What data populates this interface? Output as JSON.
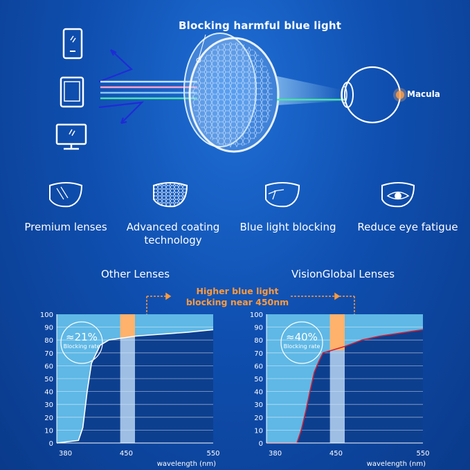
{
  "top": {
    "title": "Blocking harmful blue light",
    "macula_label": "Macula",
    "icons": [
      "phone-icon",
      "tablet-icon",
      "monitor-icon"
    ]
  },
  "features": [
    {
      "label": "Premium lenses",
      "icon": "lens-icon"
    },
    {
      "label": "Advanced coating technology",
      "line1": "Advanced coating",
      "line2": "technology",
      "icon": "coating-icon"
    },
    {
      "label": "Blue light blocking",
      "icon": "blue-light-block-icon"
    },
    {
      "label": "Reduce eye fatigue",
      "icon": "eye-icon"
    }
  ],
  "comparison": {
    "left_heading": "Other Lenses",
    "right_heading": "VisionGlobal Lenses",
    "callout_line1": "Higher blue light",
    "callout_line2": "blocking near 450nm",
    "highlight_color": "#ffb26b",
    "curve_color_left": "#ffffff",
    "curve_color_right": "#d0203a"
  },
  "chart_data": [
    {
      "type": "area",
      "title": "Other Lenses",
      "xlabel": "wavelength (nm)",
      "x_ticks": [
        380,
        450,
        550
      ],
      "y_ticks": [
        0,
        10,
        20,
        30,
        40,
        50,
        60,
        70,
        80,
        90,
        100
      ],
      "xlim": [
        370,
        550
      ],
      "ylim": [
        0,
        100
      ],
      "x": [
        370,
        395,
        400,
        405,
        410,
        420,
        430,
        440,
        450,
        460,
        480,
        500,
        520,
        550
      ],
      "y": [
        0,
        2,
        12,
        40,
        62,
        76,
        80,
        81,
        82,
        83,
        84,
        85,
        86,
        88
      ],
      "annotation_value": "≈21%",
      "annotation_label": "Blocking rate",
      "highlight_x_range": [
        443,
        460
      ]
    },
    {
      "type": "area",
      "title": "VisionGlobal Lenses",
      "xlabel": "wavelength (nm)",
      "x_ticks": [
        380,
        450,
        550
      ],
      "y_ticks": [
        0,
        10,
        20,
        30,
        40,
        50,
        60,
        70,
        80,
        90,
        100
      ],
      "xlim": [
        370,
        550
      ],
      "ylim": [
        0,
        100
      ],
      "x": [
        370,
        405,
        410,
        415,
        420,
        425,
        430,
        435,
        440,
        445,
        460,
        480,
        500,
        520,
        550
      ],
      "y": [
        0,
        0,
        10,
        24,
        40,
        55,
        63,
        70,
        71,
        72,
        75,
        80,
        83,
        85,
        88
      ],
      "annotation_value": "≈40%",
      "annotation_label": "Blocking rate",
      "highlight_x_range": [
        443,
        460
      ]
    }
  ]
}
